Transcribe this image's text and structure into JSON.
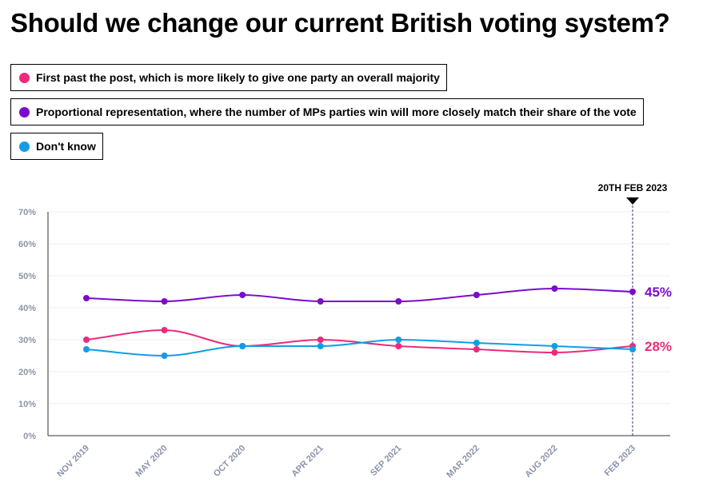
{
  "chart_data": {
    "type": "line",
    "title": "Should we change our current British voting system?",
    "categories": [
      "NOV 2019",
      "MAY 2020",
      "OCT 2020",
      "APR 2021",
      "SEP 2021",
      "MAR 2022",
      "AUG 2022",
      "FEB 2023"
    ],
    "ylim": [
      0,
      70
    ],
    "yticks": [
      0,
      10,
      20,
      30,
      40,
      50,
      60,
      70
    ],
    "ytick_labels": [
      "0%",
      "10%",
      "20%",
      "30%",
      "40%",
      "50%",
      "60%",
      "70%"
    ],
    "grid": true,
    "legend_position": "top",
    "marker_label": "20TH FEB 2023",
    "series": [
      {
        "name": "First past the post, which is more likely to give one party an overall majority",
        "color": "#ec2a7a",
        "values": [
          30,
          33,
          28,
          30,
          28,
          27,
          26,
          28
        ],
        "end_label": "28%"
      },
      {
        "name": "Proportional representation, where the number of MPs parties win will more closely match their share of the vote",
        "color": "#7a0ccc",
        "values": [
          43,
          42,
          44,
          42,
          42,
          44,
          46,
          45
        ],
        "end_label": "45%"
      },
      {
        "name": "Don't know",
        "color": "#119ee6",
        "values": [
          27,
          25,
          28,
          28,
          30,
          29,
          28,
          27
        ],
        "end_label": ""
      }
    ]
  }
}
